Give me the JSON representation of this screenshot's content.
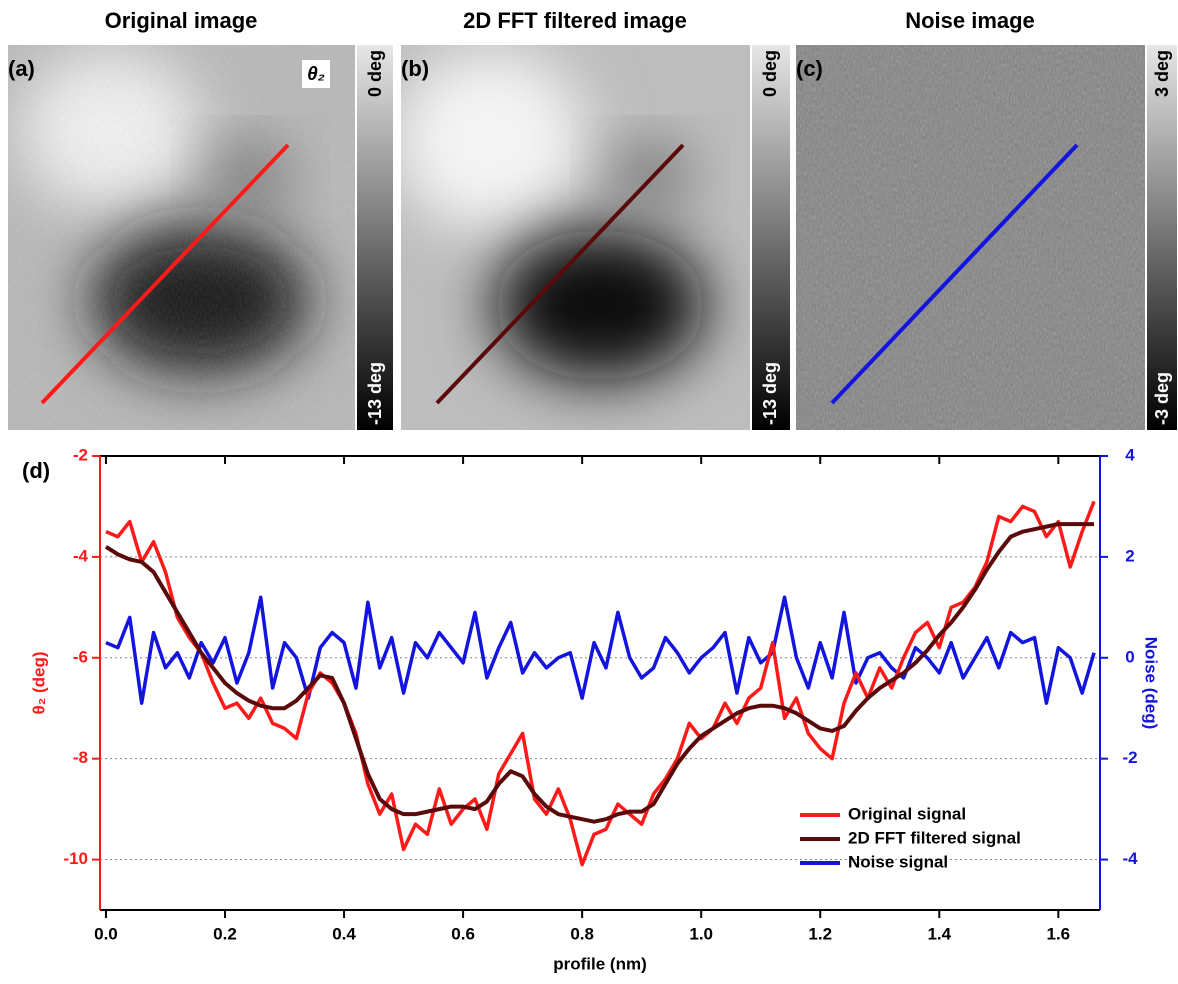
{
  "images": [
    {
      "title": "Original image",
      "label": "(a)",
      "annotation": "θ₂",
      "colorbar_top": "0 deg",
      "colorbar_bottom": "-13 deg"
    },
    {
      "title": "2D FFT filtered image",
      "label": "(b)",
      "colorbar_top": "0 deg",
      "colorbar_bottom": "-13 deg"
    },
    {
      "title": "Noise image",
      "label": "(c)",
      "colorbar_top": "3 deg",
      "colorbar_bottom": "-3 deg"
    }
  ],
  "chart_data": {
    "type": "line",
    "panel_label": "(d)",
    "x_label": "profile (nm)",
    "y_label": "θ₂ (deg)",
    "y2_label": "Noise (deg)",
    "xlim": [
      -0.01,
      1.67
    ],
    "ylim": [
      -11,
      -2
    ],
    "y2lim": [
      -5,
      4
    ],
    "xticks": [
      {
        "value": 0,
        "label": "0.0"
      },
      0.2,
      0.4,
      0.6,
      0.8,
      {
        "value": 1,
        "label": "1.0"
      },
      1.2,
      1.4,
      1.6
    ],
    "yticks": [
      -2,
      -4,
      -6,
      -8,
      -10
    ],
    "y2ticks": [
      4,
      2,
      0,
      -2,
      -4
    ],
    "grid": true,
    "legend": "lower right",
    "x": [
      0,
      0.02,
      0.04,
      0.06,
      0.08,
      0.1,
      0.12,
      0.14,
      0.16,
      0.18,
      0.2,
      0.22,
      0.24,
      0.26,
      0.28,
      0.3,
      0.32,
      0.34,
      0.36,
      0.38,
      0.4,
      0.42,
      0.44,
      0.46,
      0.48,
      0.5,
      0.52,
      0.54,
      0.56,
      0.58,
      0.6,
      0.62,
      0.64,
      0.66,
      0.68,
      0.7,
      0.72,
      0.74,
      0.76,
      0.78,
      0.8,
      0.82,
      0.84,
      0.86,
      0.88,
      0.9,
      0.92,
      0.94,
      0.96,
      0.98,
      1,
      1.02,
      1.04,
      1.06,
      1.08,
      1.1,
      1.12,
      1.14,
      1.16,
      1.18,
      1.2,
      1.22,
      1.24,
      1.26,
      1.28,
      1.3,
      1.32,
      1.34,
      1.36,
      1.38,
      1.4,
      1.42,
      1.44,
      1.46,
      1.48,
      1.5,
      1.52,
      1.54,
      1.56,
      1.58,
      1.6,
      1.62,
      1.64,
      1.66
    ],
    "series": [
      {
        "name": "Original signal",
        "color": "#ff1a1a",
        "values": [
          -3.5,
          -3.6,
          -3.3,
          -4.1,
          -3.7,
          -4.3,
          -5.2,
          -5.6,
          -5.9,
          -6.5,
          -7.0,
          -6.9,
          -7.2,
          -6.8,
          -7.3,
          -7.4,
          -7.6,
          -6.7,
          -6.3,
          -6.5,
          -6.9,
          -7.5,
          -8.5,
          -9.1,
          -8.7,
          -9.8,
          -9.3,
          -9.5,
          -8.6,
          -9.3,
          -9.0,
          -8.8,
          -9.4,
          -8.3,
          -7.9,
          -7.5,
          -8.8,
          -9.1,
          -8.6,
          -9.2,
          -10.1,
          -9.5,
          -9.4,
          -8.9,
          -9.1,
          -9.3,
          -8.7,
          -8.4,
          -8.0,
          -7.3,
          -7.6,
          -7.4,
          -6.9,
          -7.3,
          -6.8,
          -6.6,
          -5.7,
          -7.2,
          -6.8,
          -7.5,
          -7.8,
          -8.0,
          -6.9,
          -6.3,
          -6.8,
          -6.2,
          -6.6,
          -6.0,
          -5.5,
          -5.3,
          -5.8,
          -5.0,
          -4.9,
          -4.6,
          -4.1,
          -3.2,
          -3.3,
          -3.0,
          -3.1,
          -3.6,
          -3.3,
          -4.2,
          -3.5,
          -2.9
        ]
      },
      {
        "name": "2D FFT filtered signal",
        "color": "#5a0a0a",
        "values": [
          -3.8,
          -3.95,
          -4.05,
          -4.1,
          -4.3,
          -4.7,
          -5.1,
          -5.5,
          -5.9,
          -6.2,
          -6.5,
          -6.7,
          -6.85,
          -6.95,
          -7.0,
          -7.0,
          -6.85,
          -6.6,
          -6.35,
          -6.4,
          -6.9,
          -7.6,
          -8.3,
          -8.8,
          -9.0,
          -9.1,
          -9.1,
          -9.05,
          -9.0,
          -8.95,
          -8.95,
          -9.0,
          -8.85,
          -8.5,
          -8.25,
          -8.35,
          -8.7,
          -8.95,
          -9.1,
          -9.15,
          -9.2,
          -9.25,
          -9.2,
          -9.1,
          -9.05,
          -9.05,
          -8.9,
          -8.5,
          -8.1,
          -7.8,
          -7.55,
          -7.4,
          -7.25,
          -7.1,
          -7.0,
          -6.95,
          -6.95,
          -7.0,
          -7.1,
          -7.25,
          -7.4,
          -7.45,
          -7.35,
          -7.05,
          -6.8,
          -6.6,
          -6.45,
          -6.3,
          -6.1,
          -5.85,
          -5.55,
          -5.3,
          -5.0,
          -4.65,
          -4.25,
          -3.9,
          -3.6,
          -3.5,
          -3.45,
          -3.4,
          -3.35,
          -3.35,
          -3.35,
          -3.35
        ]
      },
      {
        "name": "Noise signal",
        "color": "#1414e0",
        "axis": "y2",
        "values": [
          0.3,
          0.2,
          0.8,
          -0.9,
          0.5,
          -0.2,
          0.1,
          -0.4,
          0.3,
          -0.1,
          0.4,
          -0.5,
          0.1,
          1.2,
          -0.6,
          0.3,
          0.0,
          -0.8,
          0.2,
          0.5,
          0.3,
          -0.6,
          1.1,
          -0.2,
          0.4,
          -0.7,
          0.3,
          0.0,
          0.5,
          0.2,
          -0.1,
          0.9,
          -0.4,
          0.2,
          0.7,
          -0.3,
          0.1,
          -0.2,
          0.0,
          0.1,
          -0.8,
          0.3,
          -0.2,
          0.9,
          0.0,
          -0.4,
          -0.2,
          0.4,
          0.1,
          -0.3,
          0.0,
          0.2,
          0.5,
          -0.7,
          0.4,
          -0.1,
          0.1,
          1.2,
          0.0,
          -0.6,
          0.3,
          -0.4,
          0.9,
          -0.5,
          0.0,
          0.1,
          -0.2,
          -0.4,
          0.2,
          0.0,
          -0.3,
          0.3,
          -0.4,
          0.0,
          0.4,
          -0.2,
          0.5,
          0.3,
          0.4,
          -0.9,
          0.2,
          0.0,
          -0.7,
          0.1
        ]
      }
    ]
  }
}
